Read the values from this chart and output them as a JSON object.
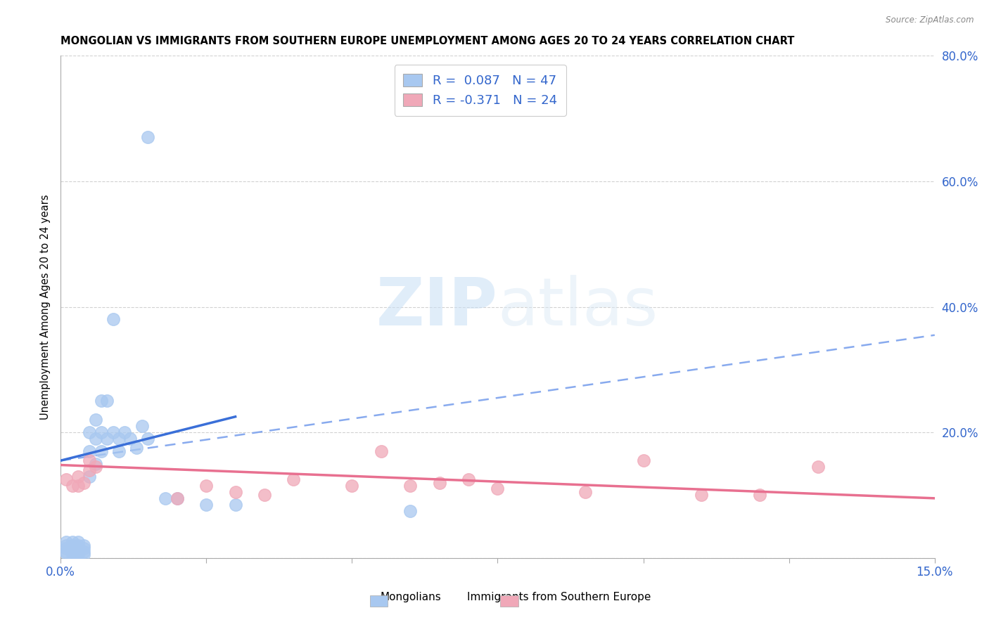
{
  "title": "MONGOLIAN VS IMMIGRANTS FROM SOUTHERN EUROPE UNEMPLOYMENT AMONG AGES 20 TO 24 YEARS CORRELATION CHART",
  "source": "Source: ZipAtlas.com",
  "ylabel": "Unemployment Among Ages 20 to 24 years",
  "xlim": [
    0,
    0.15
  ],
  "ylim": [
    0,
    0.8
  ],
  "xticks": [
    0.0,
    0.025,
    0.05,
    0.075,
    0.1,
    0.125,
    0.15
  ],
  "xtick_labels": [
    "0.0%",
    "",
    "",
    "",
    "",
    "",
    "15.0%"
  ],
  "yticks": [
    0.0,
    0.2,
    0.4,
    0.6,
    0.8
  ],
  "ytick_labels": [
    "",
    "20.0%",
    "40.0%",
    "60.0%",
    "80.0%"
  ],
  "mongolians_R": 0.087,
  "mongolians_N": 47,
  "immigrants_R": -0.371,
  "immigrants_N": 24,
  "mongolian_color": "#a8c8f0",
  "immigrant_color": "#f0a8b8",
  "mongolian_trend_color": "#3a6fd8",
  "immigrant_trend_color": "#e87090",
  "dashed_trend_color": "#88aaee",
  "background_color": "#ffffff",
  "watermark_zip": "ZIP",
  "watermark_atlas": "atlas",
  "mongolians_x": [
    0.001,
    0.001,
    0.001,
    0.001,
    0.001,
    0.002,
    0.002,
    0.002,
    0.002,
    0.002,
    0.002,
    0.003,
    0.003,
    0.003,
    0.003,
    0.003,
    0.003,
    0.004,
    0.004,
    0.004,
    0.004,
    0.005,
    0.005,
    0.005,
    0.006,
    0.006,
    0.006,
    0.007,
    0.007,
    0.007,
    0.008,
    0.008,
    0.009,
    0.009,
    0.01,
    0.01,
    0.011,
    0.012,
    0.013,
    0.014,
    0.015,
    0.018,
    0.02,
    0.025,
    0.03,
    0.06,
    0.015
  ],
  "mongolians_y": [
    0.025,
    0.02,
    0.015,
    0.01,
    0.008,
    0.025,
    0.02,
    0.015,
    0.01,
    0.008,
    0.005,
    0.025,
    0.02,
    0.015,
    0.01,
    0.008,
    0.005,
    0.02,
    0.015,
    0.01,
    0.005,
    0.2,
    0.17,
    0.13,
    0.22,
    0.19,
    0.15,
    0.25,
    0.2,
    0.17,
    0.25,
    0.19,
    0.38,
    0.2,
    0.19,
    0.17,
    0.2,
    0.19,
    0.175,
    0.21,
    0.19,
    0.095,
    0.095,
    0.085,
    0.085,
    0.075,
    0.67
  ],
  "immigrants_x": [
    0.001,
    0.002,
    0.003,
    0.003,
    0.004,
    0.005,
    0.005,
    0.006,
    0.02,
    0.025,
    0.03,
    0.035,
    0.04,
    0.05,
    0.055,
    0.06,
    0.065,
    0.07,
    0.075,
    0.09,
    0.1,
    0.11,
    0.12,
    0.13
  ],
  "immigrants_y": [
    0.125,
    0.115,
    0.13,
    0.115,
    0.12,
    0.155,
    0.14,
    0.145,
    0.095,
    0.115,
    0.105,
    0.1,
    0.125,
    0.115,
    0.17,
    0.115,
    0.12,
    0.125,
    0.11,
    0.105,
    0.155,
    0.1,
    0.1,
    0.145
  ],
  "mon_trend_x0": 0.0,
  "mon_trend_y0": 0.155,
  "mon_trend_x1": 0.03,
  "mon_trend_y1": 0.225,
  "dash_trend_x0": 0.0,
  "dash_trend_y0": 0.155,
  "dash_trend_x1": 0.15,
  "dash_trend_y1": 0.355,
  "imm_trend_x0": 0.0,
  "imm_trend_y0": 0.148,
  "imm_trend_x1": 0.15,
  "imm_trend_y1": 0.095
}
